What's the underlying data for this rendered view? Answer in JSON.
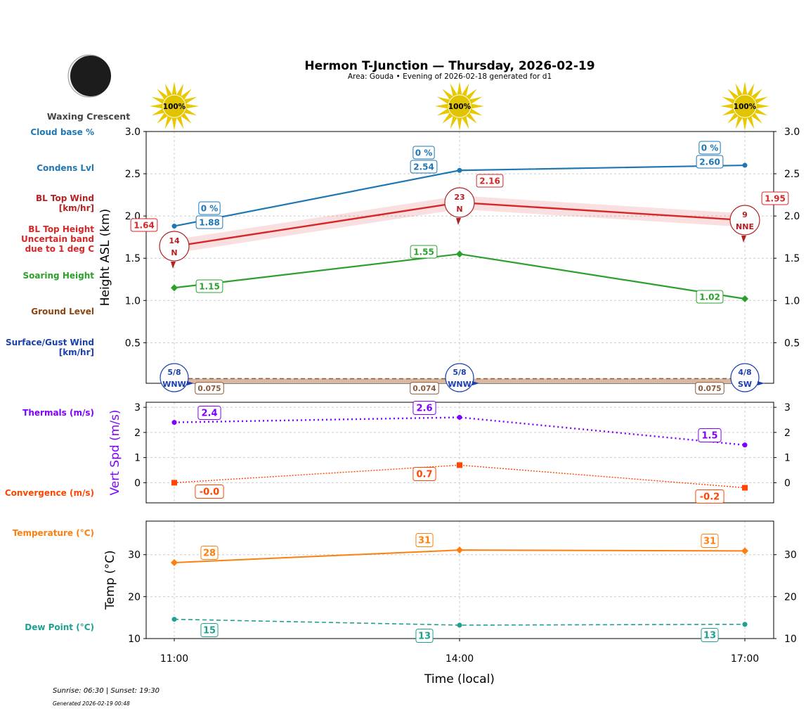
{
  "title": "Hermon T-Junction — Thursday, 2026-02-19",
  "subtitle": "Area: Gouda • Evening of 2026-02-18 generated for d1",
  "moon_phase": "Waxing Crescent",
  "sun_info": "Sunrise: 06:30 | Sunset: 19:30",
  "generated": "Generated 2026-02-19 00:48",
  "sun_icons": [
    "100%",
    "100%",
    "100%"
  ],
  "left_labels": {
    "cloud_base": "Cloud base %",
    "condens": "Condens Lvl",
    "bl_wind": "BL Top Wind\n[km/hr]",
    "bl_height": "BL Top Height\nUncertain band\ndue to 1 deg C",
    "soaring": "Soaring Height",
    "ground": "Ground Level",
    "surface_wind": "Surface/Gust Wind\n[km/hr]",
    "thermals": "Thermals (m/s)",
    "convergence": "Convergence (m/s)",
    "temperature": "Temperature (°C)",
    "dewpoint": "Dew Point (°C)"
  },
  "colors": {
    "cloud": "#1f77b4",
    "bl": "#d62728",
    "blwind": "#b22222",
    "soar": "#2ca02c",
    "ground": "#8b4513",
    "surf": "#1a3fb0",
    "therm": "#8000ff",
    "conv": "#ff4500",
    "temp": "#ff7f0e",
    "dew": "#20a090"
  },
  "chart_data": [
    {
      "type": "line",
      "ylabel": "Height ASL (km)",
      "ylim": [
        0.02,
        3.0
      ],
      "yticks": [
        "0.5",
        "1.0",
        "1.5",
        "2.0",
        "2.5",
        "3.0"
      ],
      "x": [
        "11:00",
        "14:00",
        "17:00"
      ],
      "grid": true,
      "series": [
        {
          "key": "cloud",
          "values": [
            1.88,
            2.54,
            2.6
          ],
          "labels": [
            "1.88",
            "2.54",
            "2.60"
          ],
          "cloud_pct": [
            "0 %",
            "0 %",
            "0 %"
          ]
        },
        {
          "key": "bl",
          "values": [
            1.64,
            2.16,
            1.95
          ],
          "labels": [
            "1.64",
            "2.16",
            "1.95"
          ],
          "band": 0.08
        },
        {
          "key": "soar",
          "values": [
            1.15,
            1.55,
            1.02
          ],
          "labels": [
            "1.15",
            "1.55",
            "1.02"
          ]
        },
        {
          "key": "ground",
          "values": [
            0.075,
            0.074,
            0.075
          ],
          "labels": [
            "0.075",
            "0.074",
            "0.075"
          ]
        }
      ],
      "bl_wind": [
        {
          "speed": "14",
          "dir": "N"
        },
        {
          "speed": "23",
          "dir": "N"
        },
        {
          "speed": "9",
          "dir": "NNE"
        }
      ],
      "surface_wind": [
        {
          "speed": "5/8",
          "dir": "WNW"
        },
        {
          "speed": "5/8",
          "dir": "WNW"
        },
        {
          "speed": "4/8",
          "dir": "SW"
        }
      ]
    },
    {
      "type": "line",
      "ylabel": "Vert Spd (m/s)",
      "ylim": [
        -0.8,
        3.2
      ],
      "yticks": [
        "0",
        "1",
        "2",
        "3"
      ],
      "x": [
        "11:00",
        "14:00",
        "17:00"
      ],
      "series": [
        {
          "key": "therm",
          "values": [
            2.4,
            2.6,
            1.5
          ],
          "labels": [
            "2.4",
            "2.6",
            "1.5"
          ]
        },
        {
          "key": "conv",
          "values": [
            0.0,
            0.7,
            -0.2
          ],
          "labels": [
            "-0.0",
            "0.7",
            "-0.2"
          ]
        }
      ]
    },
    {
      "type": "line",
      "ylabel": "Temp (°C)",
      "xlabel": "Time (local)",
      "ylim": [
        10,
        38
      ],
      "yticks": [
        "10",
        "20",
        "30"
      ],
      "x": [
        "11:00",
        "14:00",
        "17:00"
      ],
      "series": [
        {
          "key": "temp",
          "values": [
            28.1,
            31.1,
            30.9
          ],
          "labels": [
            "28",
            "31",
            "31"
          ]
        },
        {
          "key": "dew",
          "values": [
            14.6,
            13.2,
            13.4
          ],
          "labels": [
            "15",
            "13",
            "13"
          ]
        }
      ]
    }
  ]
}
